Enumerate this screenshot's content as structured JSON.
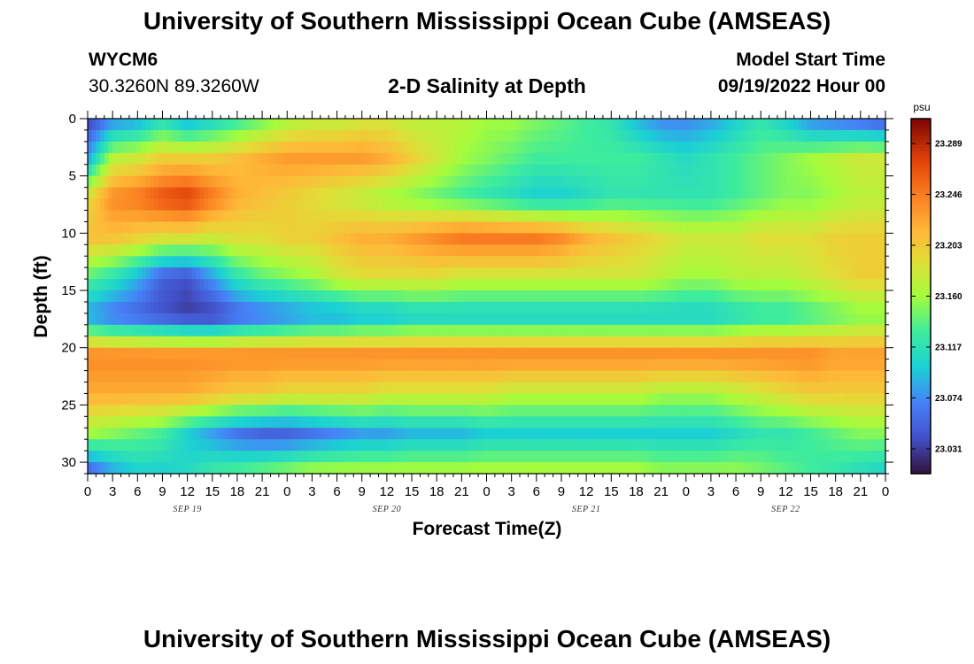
{
  "header": {
    "title": "University of Southern Mississippi Ocean Cube (AMSEAS)",
    "station": "WYCM6",
    "coords": "30.3260N  89.3260W",
    "subtitle": "2-D Salinity at Depth",
    "model_start_label": "Model Start Time",
    "model_start_value": "09/19/2022 Hour 00"
  },
  "footer": {
    "title": "University of Southern Mississippi Ocean Cube (AMSEAS)"
  },
  "chart_data": {
    "type": "heatmap",
    "title": "2-D Salinity at Depth",
    "xlabel": "Forecast Time(Z)",
    "ylabel": "Depth (ft)",
    "x_range": [
      0,
      96
    ],
    "ylim": [
      0,
      31
    ],
    "y_inverted": true,
    "x_ticks": [
      "0",
      "3",
      "6",
      "9",
      "12",
      "15",
      "18",
      "21",
      "0",
      "3",
      "6",
      "9",
      "12",
      "15",
      "18",
      "21",
      "0",
      "3",
      "6",
      "9",
      "12",
      "15",
      "18",
      "21",
      "0",
      "3",
      "6",
      "9",
      "12",
      "15",
      "18",
      "21",
      "0"
    ],
    "day_labels": [
      {
        "label": "SEP 19",
        "hour": 12
      },
      {
        "label": "SEP 20",
        "hour": 36
      },
      {
        "label": "SEP 21",
        "hour": 60
      },
      {
        "label": "SEP 22",
        "hour": 84
      }
    ],
    "y_ticks": [
      0,
      5,
      10,
      15,
      20,
      25,
      30
    ],
    "colorbar": {
      "unit": "psu",
      "min": 23.01,
      "max": 23.31,
      "ticks": [
        23.289,
        23.246,
        23.203,
        23.16,
        23.117,
        23.074,
        23.031
      ],
      "tick_labels": [
        "23.289",
        "23.246",
        "23.203",
        "23.160",
        "23.117",
        "23.074",
        "23.031"
      ]
    },
    "time_hours": [
      0,
      3,
      6,
      9,
      12,
      15,
      18,
      21,
      24,
      27,
      30,
      33,
      36,
      39,
      42,
      45,
      48,
      51,
      54,
      57,
      60,
      63,
      66,
      69,
      72,
      75,
      78,
      81,
      84,
      87,
      90,
      93,
      96
    ],
    "depths_ft": [
      0,
      5,
      10,
      15,
      20,
      25,
      30
    ],
    "salinity_psu": [
      [
        23.03,
        23.08,
        23.19,
        23.21,
        23.14,
        23.08,
        23.24,
        23.22,
        23.16,
        23.04
      ],
      [
        23.07,
        23.17,
        23.24,
        23.21,
        23.12,
        23.06,
        23.24,
        23.22,
        23.15,
        23.08
      ],
      [
        23.08,
        23.18,
        23.25,
        23.2,
        23.09,
        23.05,
        23.24,
        23.22,
        23.14,
        23.1
      ],
      [
        23.11,
        23.2,
        23.27,
        23.19,
        23.05,
        23.04,
        23.24,
        23.22,
        23.13,
        23.1
      ],
      [
        23.08,
        23.2,
        23.28,
        23.19,
        23.04,
        23.03,
        23.24,
        23.22,
        23.1,
        23.11
      ],
      [
        23.1,
        23.2,
        23.25,
        23.18,
        23.08,
        23.03,
        23.24,
        23.21,
        23.08,
        23.13
      ],
      [
        23.12,
        23.21,
        23.22,
        23.19,
        23.12,
        23.05,
        23.24,
        23.2,
        23.06,
        23.14
      ],
      [
        23.14,
        23.22,
        23.21,
        23.19,
        23.14,
        23.06,
        23.24,
        23.2,
        23.05,
        23.15
      ],
      [
        23.16,
        23.23,
        23.2,
        23.2,
        23.15,
        23.07,
        23.24,
        23.19,
        23.05,
        23.16
      ],
      [
        23.17,
        23.23,
        23.19,
        23.2,
        23.16,
        23.08,
        23.24,
        23.19,
        23.06,
        23.17
      ],
      [
        23.17,
        23.23,
        23.18,
        23.21,
        23.18,
        23.08,
        23.24,
        23.19,
        23.07,
        23.17
      ],
      [
        23.18,
        23.23,
        23.17,
        23.22,
        23.19,
        23.09,
        23.24,
        23.19,
        23.08,
        23.17
      ],
      [
        23.18,
        23.22,
        23.16,
        23.22,
        23.19,
        23.09,
        23.24,
        23.18,
        23.08,
        23.17
      ],
      [
        23.17,
        23.2,
        23.15,
        23.23,
        23.19,
        23.1,
        23.24,
        23.18,
        23.09,
        23.17
      ],
      [
        23.17,
        23.18,
        23.14,
        23.24,
        23.19,
        23.1,
        23.24,
        23.18,
        23.09,
        23.17
      ],
      [
        23.17,
        23.16,
        23.13,
        23.25,
        23.18,
        23.1,
        23.24,
        23.18,
        23.09,
        23.17
      ],
      [
        23.16,
        23.15,
        23.12,
        23.25,
        23.18,
        23.1,
        23.24,
        23.18,
        23.1,
        23.17
      ],
      [
        23.16,
        23.14,
        23.11,
        23.25,
        23.18,
        23.1,
        23.24,
        23.17,
        23.1,
        23.17
      ],
      [
        23.15,
        23.13,
        23.1,
        23.25,
        23.18,
        23.1,
        23.24,
        23.17,
        23.1,
        23.17
      ],
      [
        23.14,
        23.13,
        23.1,
        23.24,
        23.18,
        23.1,
        23.24,
        23.17,
        23.1,
        23.17
      ],
      [
        23.13,
        23.13,
        23.11,
        23.22,
        23.18,
        23.1,
        23.24,
        23.17,
        23.1,
        23.17
      ],
      [
        23.12,
        23.13,
        23.12,
        23.21,
        23.18,
        23.1,
        23.24,
        23.17,
        23.1,
        23.17
      ],
      [
        23.09,
        23.13,
        23.12,
        23.2,
        23.18,
        23.1,
        23.24,
        23.17,
        23.1,
        23.17
      ],
      [
        23.07,
        23.12,
        23.12,
        23.19,
        23.17,
        23.1,
        23.24,
        23.16,
        23.1,
        23.16
      ],
      [
        23.07,
        23.11,
        23.12,
        23.18,
        23.16,
        23.1,
        23.24,
        23.16,
        23.1,
        23.16
      ],
      [
        23.08,
        23.12,
        23.12,
        23.18,
        23.16,
        23.1,
        23.24,
        23.16,
        23.1,
        23.16
      ],
      [
        23.1,
        23.13,
        23.13,
        23.18,
        23.17,
        23.11,
        23.24,
        23.17,
        23.11,
        23.16
      ],
      [
        23.12,
        23.14,
        23.14,
        23.19,
        23.17,
        23.12,
        23.24,
        23.18,
        23.12,
        23.15
      ],
      [
        23.1,
        23.15,
        23.15,
        23.19,
        23.17,
        23.12,
        23.24,
        23.19,
        23.12,
        23.14
      ],
      [
        23.07,
        23.16,
        23.15,
        23.19,
        23.18,
        23.13,
        23.24,
        23.2,
        23.13,
        23.13
      ],
      [
        23.06,
        23.17,
        23.16,
        23.2,
        23.19,
        23.14,
        23.23,
        23.2,
        23.14,
        23.12
      ],
      [
        23.05,
        23.18,
        23.17,
        23.2,
        23.2,
        23.15,
        23.23,
        23.2,
        23.15,
        23.11
      ],
      [
        23.04,
        23.18,
        23.17,
        23.2,
        23.2,
        23.15,
        23.23,
        23.2,
        23.15,
        23.1
      ]
    ],
    "note": "salinity_psu rows follow time_hours; columns are depth nodes at 0, 3.5, 7, 10.5, 14, 17.5, 21, 24.5, 28, 31 ft"
  }
}
